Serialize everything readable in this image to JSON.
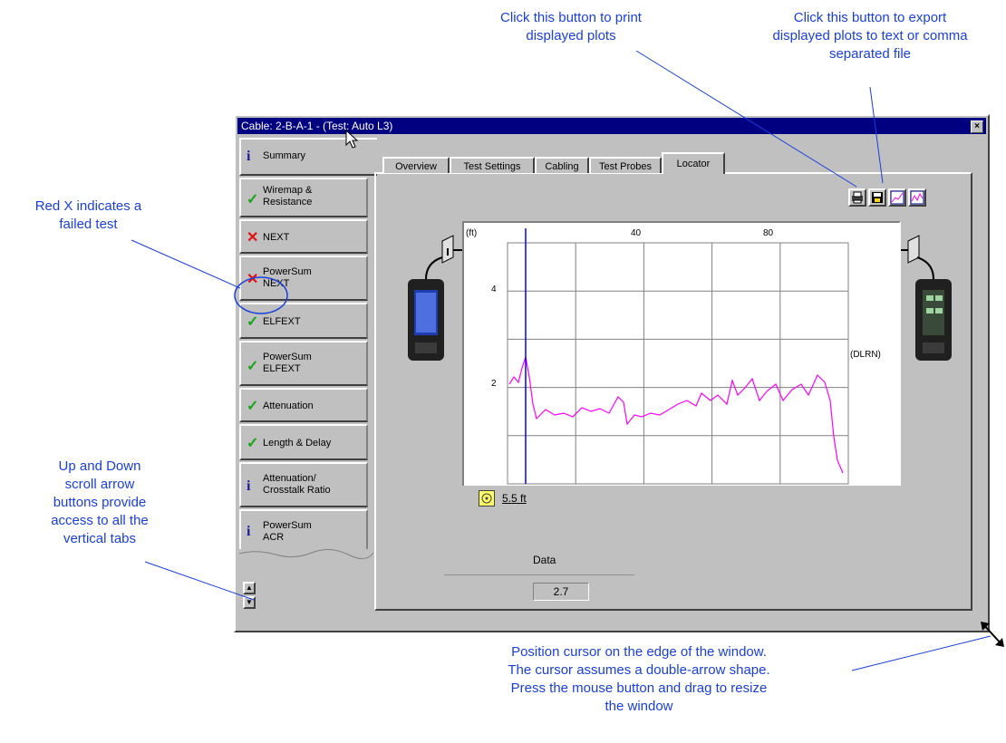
{
  "callouts": {
    "print": [
      "Click this button to print",
      "displayed plots"
    ],
    "export": [
      "Click this button to export",
      "displayed plots to text or comma",
      "separated file"
    ],
    "red_x": [
      "Red X  indicates a",
      "failed test"
    ],
    "scroll": [
      "Up and Down",
      "scroll arrow",
      "buttons provide",
      "access to all the",
      "vertical tabs"
    ],
    "resize": [
      "Position cursor on the edge of the window.",
      "The cursor assumes a double-arrow shape.",
      "Press the mouse button and drag to resize",
      "the window"
    ]
  },
  "window": {
    "title": "Cable: 2-B-A-1 - (Test: Auto L3)",
    "close_glyph": "×"
  },
  "vertical_tabs": [
    {
      "icon": "info",
      "label_1": "Summary",
      "label_2": ""
    },
    {
      "icon": "check",
      "label_1": "Wiremap &",
      "label_2": "Resistance"
    },
    {
      "icon": "x",
      "label_1": "NEXT",
      "label_2": ""
    },
    {
      "icon": "x",
      "label_1": "PowerSum",
      "label_2": "NEXT"
    },
    {
      "icon": "check",
      "label_1": "ELFEXT",
      "label_2": ""
    },
    {
      "icon": "check",
      "label_1": "PowerSum",
      "label_2": "ELFEXT"
    },
    {
      "icon": "check",
      "label_1": "Attenuation",
      "label_2": ""
    },
    {
      "icon": "check",
      "label_1": "Length & Delay",
      "label_2": ""
    },
    {
      "icon": "info",
      "label_1": "Attenuation/",
      "label_2": "Crosstalk Ratio"
    },
    {
      "icon": "info",
      "label_1": "PowerSum",
      "label_2": "ACR"
    }
  ],
  "horizontal_tabs": [
    "Overview",
    "Test Settings",
    "Cabling",
    "Test Probes",
    "Locator"
  ],
  "active_horizontal_tab": "Locator",
  "plot": {
    "x_unit": "(ft)",
    "x_ticks": [
      "40",
      "80"
    ],
    "y_ticks": [
      "4",
      "2"
    ],
    "y_unit": "(DLRN)",
    "cursor_readout": "5.5 ft",
    "colors": {
      "trace": "#ff00ff",
      "cursor": "#0000ff",
      "grid": "#808080"
    }
  },
  "data_field": {
    "label": "Data",
    "value": "2.7"
  },
  "colors": {
    "callout": "#1a3fd9",
    "titlebar": "#000080",
    "face": "#c0c0c0",
    "fail": "#e01010",
    "pass": "#18a418"
  }
}
